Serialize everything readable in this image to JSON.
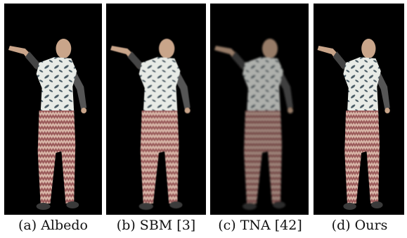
{
  "figure": {
    "panels": [
      {
        "id": "albedo",
        "caption": "(a) Albedo",
        "style": "sharp"
      },
      {
        "id": "sbm",
        "caption": "(b) SBM [3]",
        "style": "soft"
      },
      {
        "id": "tna",
        "caption": "(c) TNA [42]",
        "style": "washed"
      },
      {
        "id": "ours",
        "caption": "(d) Ours",
        "style": "sharp"
      }
    ],
    "colors": {
      "background": "#000000",
      "skin": "#c9a58a",
      "shirt": "#e8ebe6",
      "leaf": "#4a5c66",
      "pants_a": "#9a5a5a",
      "pants_b": "#d8b6a8",
      "shoe": "#3a3a3a"
    }
  }
}
